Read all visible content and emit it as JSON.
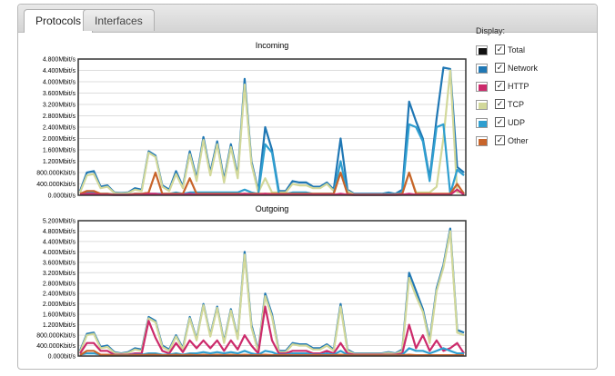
{
  "tabs": [
    {
      "label": "Protocols",
      "active": true
    },
    {
      "label": "Interfaces",
      "active": false
    }
  ],
  "legend": {
    "title": "Display:",
    "items": [
      {
        "label": "Total",
        "color": "#111111",
        "checked": true
      },
      {
        "label": "Network",
        "color": "#1f77b4",
        "checked": true
      },
      {
        "label": "HTTP",
        "color": "#cc2a6b",
        "checked": true
      },
      {
        "label": "TCP",
        "color": "#d2d89a",
        "checked": true
      },
      {
        "label": "UDP",
        "color": "#2f9fd0",
        "checked": true
      },
      {
        "label": "Other",
        "color": "#c8642a",
        "checked": true
      }
    ]
  },
  "chart_data": [
    {
      "type": "line",
      "title": "Incoming",
      "unit": "Mbit/s",
      "ylim": [
        0,
        4.8
      ],
      "yticks": [
        "0.000bit/s",
        "400.000Kbit/s",
        "800.000Kbit/s",
        "1.200Mbit/s",
        "1.600Mbit/s",
        "2.000Mbit/s",
        "2.400Mbit/s",
        "2.800Mbit/s",
        "3.200Mbit/s",
        "3.600Mbit/s",
        "4.000Mbit/s",
        "4.400Mbit/s",
        "4.800Mbit/s"
      ],
      "grid": true,
      "series": [
        {
          "name": "Network",
          "color": "#1f77b4",
          "values": [
            0.15,
            0.8,
            0.85,
            0.3,
            0.35,
            0.1,
            0.08,
            0.1,
            0.25,
            0.2,
            1.55,
            1.4,
            0.35,
            0.2,
            0.85,
            0.3,
            1.55,
            0.6,
            2.05,
            0.8,
            1.9,
            0.55,
            1.8,
            0.7,
            4.1,
            1.2,
            0.15,
            2.4,
            1.6,
            0.15,
            0.15,
            0.5,
            0.45,
            0.45,
            0.3,
            0.3,
            0.45,
            0.2,
            2.0,
            0.2,
            0.05,
            0.05,
            0.05,
            0.05,
            0.05,
            0.1,
            0.05,
            0.2,
            3.3,
            2.6,
            2.0,
            0.6,
            2.7,
            4.5,
            4.45,
            1.0,
            0.8
          ]
        },
        {
          "name": "TCP",
          "color": "#d2d89a",
          "values": [
            0.1,
            0.7,
            0.75,
            0.25,
            0.3,
            0.08,
            0.06,
            0.08,
            0.2,
            0.15,
            1.5,
            1.35,
            0.3,
            0.15,
            0.75,
            0.25,
            1.45,
            0.5,
            1.95,
            0.7,
            1.8,
            0.45,
            1.7,
            0.6,
            3.9,
            1.1,
            0.1,
            0.6,
            0.1,
            0.1,
            0.1,
            0.4,
            0.35,
            0.35,
            0.25,
            0.25,
            0.4,
            0.15,
            0.8,
            0.15,
            0.03,
            0.03,
            0.03,
            0.03,
            0.03,
            0.05,
            0.03,
            0.1,
            0.8,
            0.1,
            0.1,
            0.1,
            0.3,
            2.0,
            4.4,
            0.1,
            0.1
          ]
        },
        {
          "name": "UDP",
          "color": "#2f9fd0",
          "values": [
            0.05,
            0.1,
            0.1,
            0.05,
            0.05,
            0.03,
            0.03,
            0.03,
            0.05,
            0.05,
            0.05,
            0.05,
            0.05,
            0.05,
            0.1,
            0.05,
            0.1,
            0.1,
            0.1,
            0.1,
            0.1,
            0.1,
            0.1,
            0.1,
            0.2,
            0.1,
            0.05,
            1.8,
            1.5,
            0.05,
            0.05,
            0.1,
            0.1,
            0.1,
            0.05,
            0.05,
            0.05,
            0.05,
            1.2,
            0.05,
            0.02,
            0.02,
            0.02,
            0.02,
            0.02,
            0.05,
            0.02,
            0.1,
            2.5,
            2.4,
            1.9,
            0.5,
            2.4,
            2.5,
            0.05,
            0.9,
            0.7
          ]
        },
        {
          "name": "Other",
          "color": "#c8642a",
          "values": [
            0.05,
            0.15,
            0.15,
            0.05,
            0.05,
            0.02,
            0.02,
            0.02,
            0.05,
            0.05,
            0.1,
            0.8,
            0.05,
            0.05,
            0.05,
            0.05,
            0.6,
            0.05,
            0.05,
            0.05,
            0.05,
            0.05,
            0.05,
            0.05,
            0.05,
            0.05,
            0.05,
            0.05,
            0.05,
            0.05,
            0.05,
            0.05,
            0.05,
            0.05,
            0.05,
            0.05,
            0.05,
            0.05,
            0.8,
            0.05,
            0.02,
            0.02,
            0.02,
            0.02,
            0.02,
            0.02,
            0.02,
            0.05,
            0.8,
            0.05,
            0.05,
            0.05,
            0.05,
            0.05,
            0.05,
            0.4,
            0.05
          ]
        },
        {
          "name": "HTTP",
          "color": "#cc2a6b",
          "values": [
            0.02,
            0.05,
            0.05,
            0.02,
            0.02,
            0.01,
            0.01,
            0.01,
            0.02,
            0.02,
            0.05,
            0.05,
            0.02,
            0.02,
            0.02,
            0.02,
            0.05,
            0.02,
            0.02,
            0.02,
            0.02,
            0.02,
            0.02,
            0.02,
            0.05,
            0.02,
            0.02,
            0.05,
            0.02,
            0.02,
            0.02,
            0.02,
            0.02,
            0.02,
            0.02,
            0.02,
            0.02,
            0.02,
            0.05,
            0.02,
            0.01,
            0.01,
            0.01,
            0.01,
            0.01,
            0.01,
            0.01,
            0.02,
            0.05,
            0.02,
            0.02,
            0.02,
            0.02,
            0.02,
            0.02,
            0.2,
            0.02
          ]
        }
      ]
    },
    {
      "type": "line",
      "title": "Outgoing",
      "unit": "Mbit/s",
      "ylim": [
        0,
        5.2
      ],
      "yticks": [
        "0.000bit/s",
        "400.000Kbit/s",
        "800.000Kbit/s",
        "1.200Mbit/s",
        "1.600Mbit/s",
        "2.000Mbit/s",
        "2.400Mbit/s",
        "2.800Mbit/s",
        "3.200Mbit/s",
        "3.600Mbit/s",
        "4.000Mbit/s",
        "4.400Mbit/s",
        "4.800Mbit/s",
        "5.200Mbit/s"
      ],
      "grid": true,
      "series": [
        {
          "name": "Network",
          "color": "#1f77b4",
          "values": [
            0.2,
            0.85,
            0.9,
            0.35,
            0.4,
            0.15,
            0.1,
            0.15,
            0.3,
            0.25,
            1.5,
            1.35,
            0.4,
            0.25,
            0.8,
            0.3,
            1.5,
            0.65,
            2.0,
            0.8,
            1.9,
            0.55,
            1.8,
            0.7,
            4.0,
            1.2,
            0.2,
            2.4,
            1.6,
            0.2,
            0.2,
            0.5,
            0.45,
            0.45,
            0.3,
            0.3,
            0.45,
            0.25,
            2.0,
            0.25,
            0.1,
            0.1,
            0.1,
            0.1,
            0.1,
            0.15,
            0.1,
            0.25,
            3.2,
            2.5,
            1.8,
            0.6,
            2.6,
            3.5,
            4.9,
            1.0,
            0.9
          ]
        },
        {
          "name": "TCP",
          "color": "#d2d89a",
          "values": [
            0.15,
            0.8,
            0.85,
            0.3,
            0.35,
            0.12,
            0.08,
            0.12,
            0.25,
            0.2,
            1.45,
            1.3,
            0.35,
            0.2,
            0.75,
            0.25,
            1.45,
            0.6,
            1.95,
            0.75,
            1.85,
            0.5,
            1.75,
            0.65,
            3.9,
            1.1,
            0.15,
            2.3,
            1.5,
            0.15,
            0.15,
            0.45,
            0.4,
            0.4,
            0.25,
            0.25,
            0.4,
            0.2,
            1.9,
            0.2,
            0.08,
            0.08,
            0.08,
            0.08,
            0.08,
            0.12,
            0.08,
            0.2,
            3.0,
            2.3,
            1.7,
            0.5,
            2.5,
            3.4,
            4.8,
            0.9,
            0.8
          ]
        },
        {
          "name": "HTTP",
          "color": "#cc2a6b",
          "values": [
            0.1,
            0.5,
            0.5,
            0.2,
            0.2,
            0.05,
            0.05,
            0.05,
            0.1,
            0.1,
            1.35,
            0.7,
            0.2,
            0.1,
            0.5,
            0.15,
            0.6,
            0.3,
            0.6,
            0.3,
            0.6,
            0.2,
            0.6,
            0.25,
            0.8,
            0.4,
            0.1,
            1.9,
            0.6,
            0.1,
            0.1,
            0.2,
            0.2,
            0.2,
            0.1,
            0.1,
            0.2,
            0.1,
            0.5,
            0.1,
            0.05,
            0.05,
            0.05,
            0.05,
            0.05,
            0.05,
            0.05,
            0.1,
            1.2,
            0.3,
            0.8,
            0.2,
            0.6,
            0.2,
            0.3,
            0.5,
            0.1
          ]
        },
        {
          "name": "UDP",
          "color": "#2f9fd0",
          "values": [
            0.05,
            0.1,
            0.1,
            0.05,
            0.05,
            0.03,
            0.03,
            0.03,
            0.05,
            0.05,
            0.1,
            0.1,
            0.05,
            0.05,
            0.1,
            0.05,
            0.1,
            0.1,
            0.15,
            0.1,
            0.15,
            0.1,
            0.15,
            0.1,
            0.2,
            0.1,
            0.05,
            0.2,
            0.15,
            0.05,
            0.05,
            0.1,
            0.1,
            0.1,
            0.05,
            0.05,
            0.1,
            0.05,
            0.2,
            0.05,
            0.02,
            0.02,
            0.02,
            0.02,
            0.02,
            0.03,
            0.02,
            0.05,
            0.3,
            0.2,
            0.2,
            0.1,
            0.2,
            0.3,
            0.2,
            0.1,
            0.1
          ]
        },
        {
          "name": "Other",
          "color": "#c8642a",
          "values": [
            0.03,
            0.2,
            0.2,
            0.05,
            0.05,
            0.02,
            0.02,
            0.02,
            0.03,
            0.03,
            0.05,
            0.05,
            0.03,
            0.03,
            0.05,
            0.03,
            0.05,
            0.03,
            0.05,
            0.03,
            0.05,
            0.03,
            0.05,
            0.03,
            0.05,
            0.03,
            0.03,
            0.05,
            0.03,
            0.03,
            0.03,
            0.03,
            0.03,
            0.03,
            0.03,
            0.03,
            0.03,
            0.03,
            0.05,
            0.03,
            0.02,
            0.02,
            0.02,
            0.02,
            0.02,
            0.02,
            0.02,
            0.03,
            0.05,
            0.03,
            0.03,
            0.03,
            0.03,
            0.03,
            0.03,
            0.03,
            0.03
          ]
        }
      ]
    }
  ]
}
